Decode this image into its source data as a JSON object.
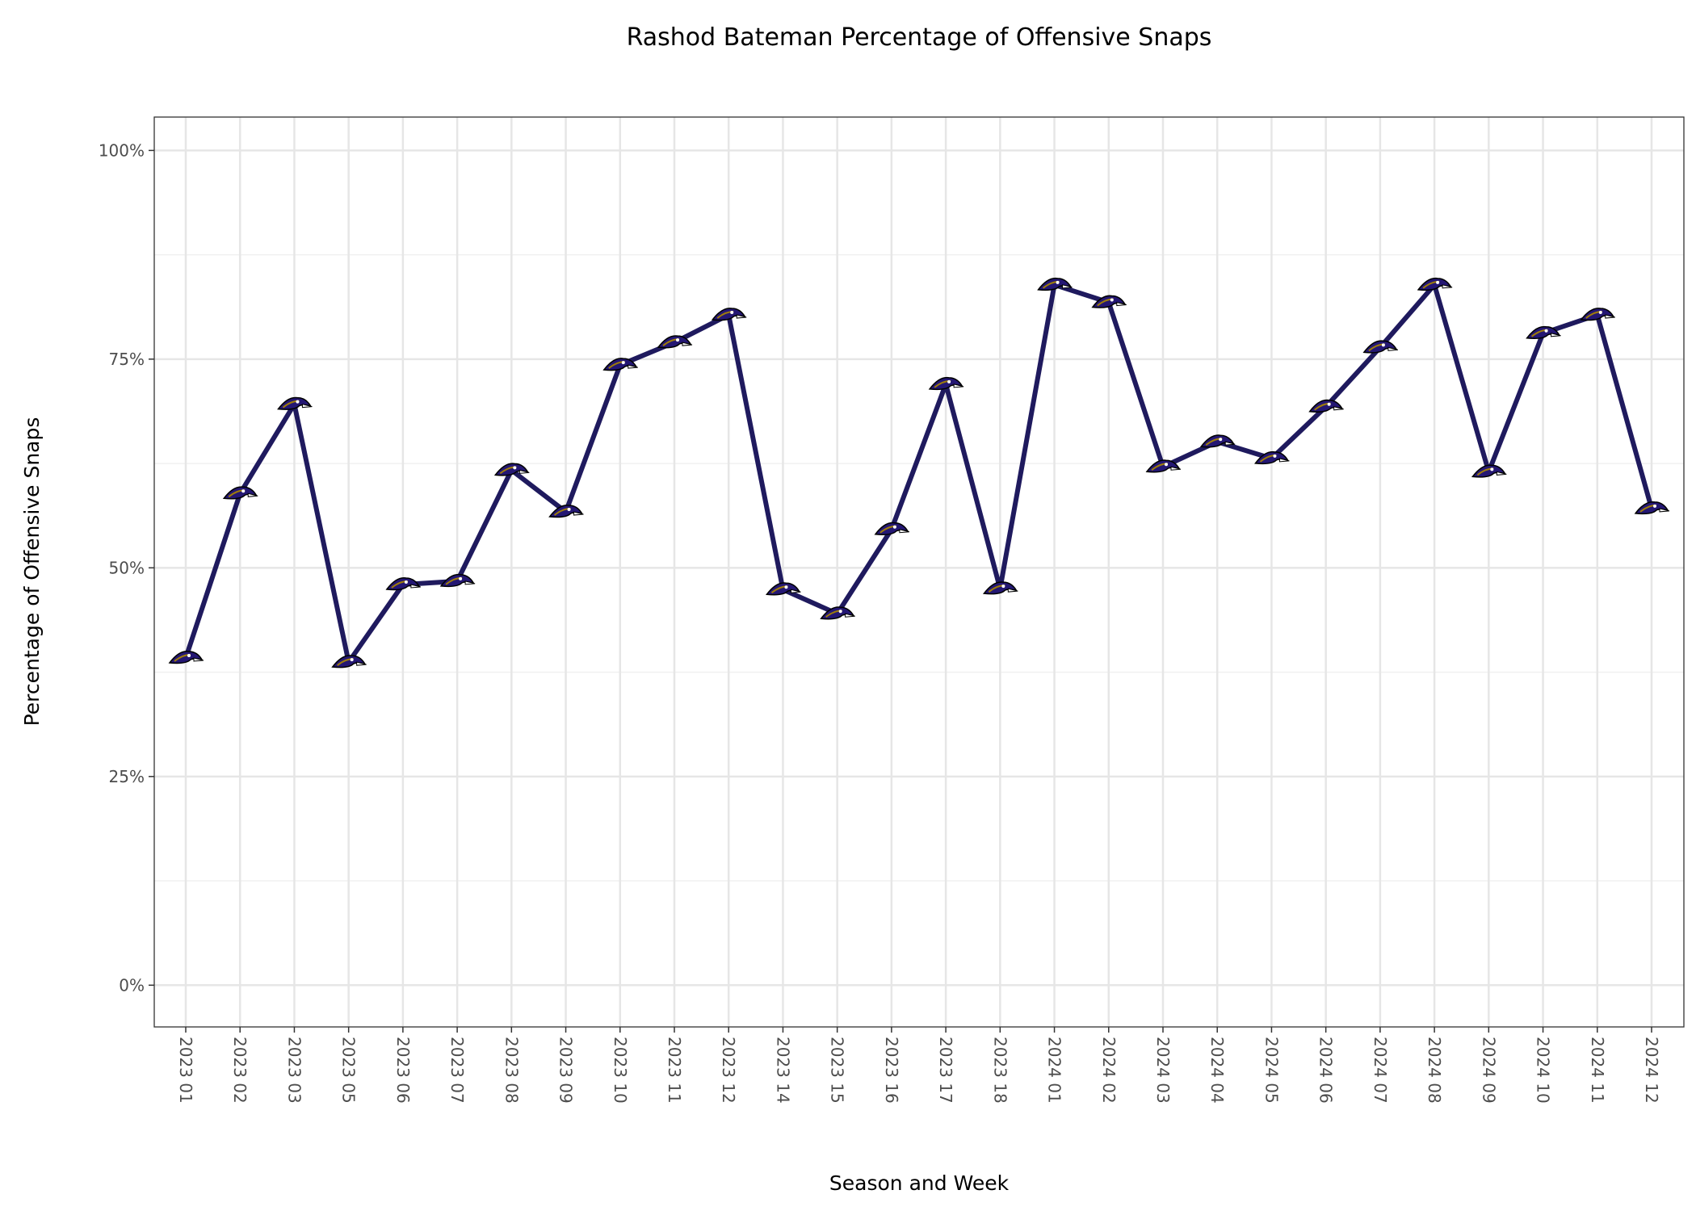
{
  "chart_data": {
    "type": "line",
    "title": "Rashod Bateman Percentage of Offensive Snaps",
    "xlabel": "Season and Week",
    "ylabel": "Percentage of Offensive Snaps",
    "ylim": [
      -5,
      104
    ],
    "yticks": [
      0,
      25,
      50,
      75,
      100
    ],
    "ytick_labels": [
      "0%",
      "25%",
      "50%",
      "75%",
      "100%"
    ],
    "grid": true,
    "line_color": "#1f1a5e",
    "marker": "ravens-logo-icon",
    "categories": [
      "2023 01",
      "2023 02",
      "2023 03",
      "2023 05",
      "2023 06",
      "2023 07",
      "2023 08",
      "2023 09",
      "2023 10",
      "2023 11",
      "2023 12",
      "2023 14",
      "2023 15",
      "2023 16",
      "2023 17",
      "2023 18",
      "2024 01",
      "2024 02",
      "2024 03",
      "2024 04",
      "2024 05",
      "2024 06",
      "2024 07",
      "2024 08",
      "2024 09",
      "2024 10",
      "2024 11",
      "2024 12"
    ],
    "series": [
      {
        "name": "Rashod Bateman",
        "values": [
          39.2,
          58.9,
          69.6,
          38.7,
          48.0,
          48.4,
          61.7,
          56.7,
          74.3,
          77.0,
          80.3,
          47.4,
          44.5,
          54.6,
          72.0,
          47.5,
          83.9,
          81.8,
          62.1,
          65.1,
          63.1,
          69.3,
          76.4,
          83.9,
          61.5,
          78.1,
          80.3,
          57.1
        ]
      }
    ]
  }
}
